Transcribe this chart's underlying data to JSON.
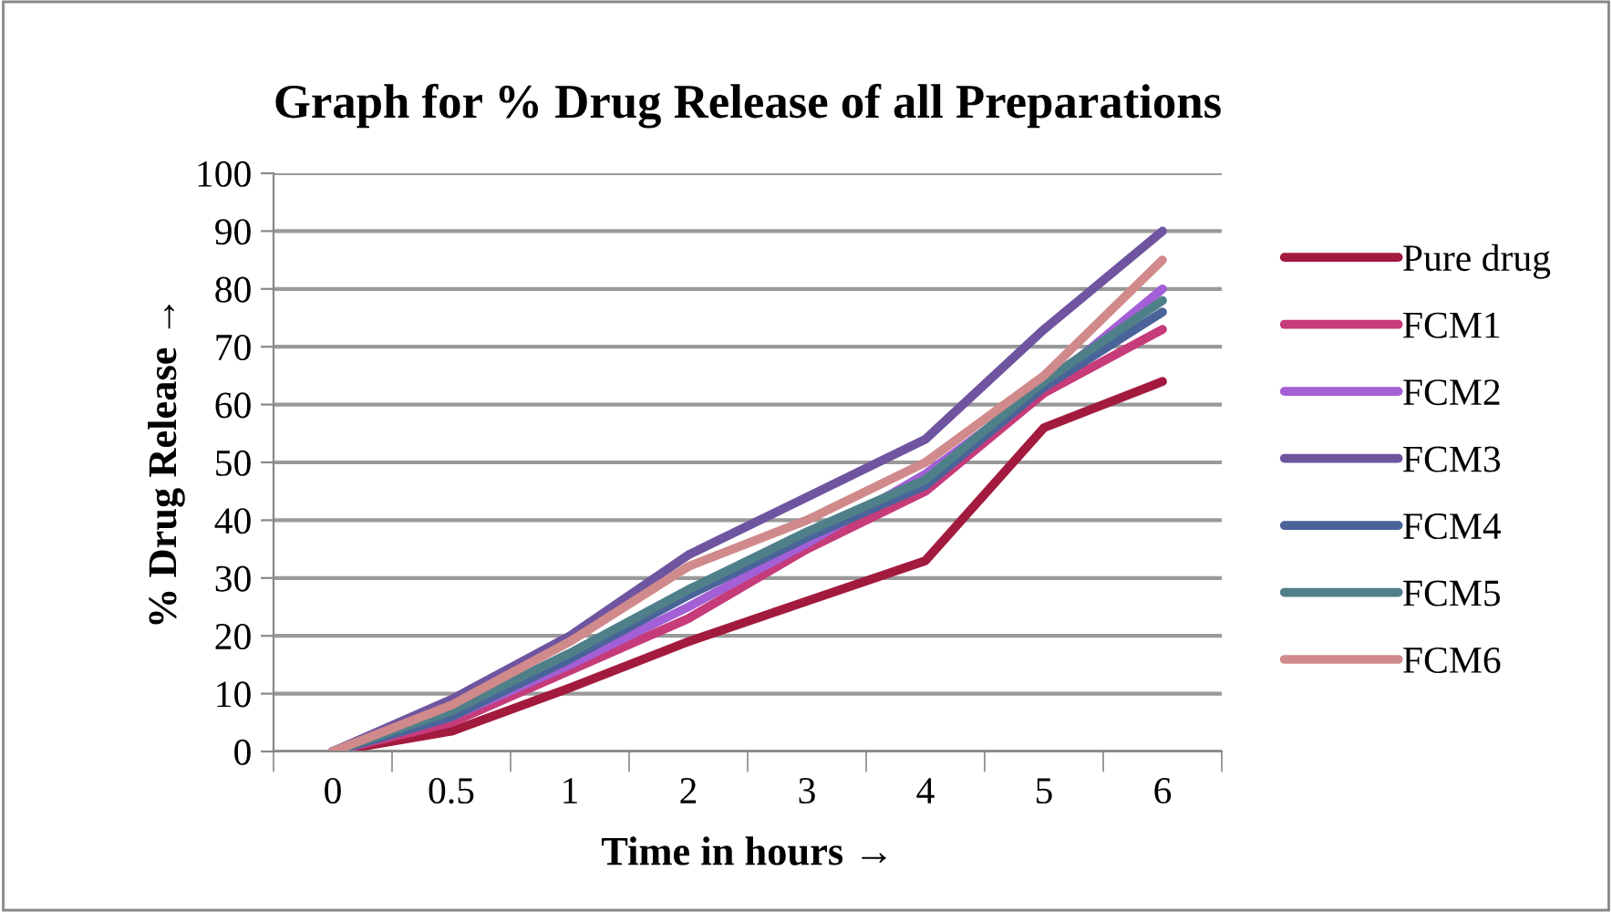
{
  "chart_data": {
    "type": "line",
    "title": "Graph for % Drug Release of all Preparations",
    "xlabel": "Time in hours →",
    "ylabel": "% Drug Release →",
    "categories": [
      "0",
      "0.5",
      "1",
      "2",
      "3",
      "4",
      "5",
      "6"
    ],
    "series": [
      {
        "name": "Pure drug",
        "color": "#a31a3f",
        "values": [
          0,
          3.5,
          11,
          19,
          26,
          33,
          56,
          64
        ]
      },
      {
        "name": "FCM1",
        "color": "#c63b7a",
        "values": [
          0,
          5,
          14,
          23,
          35,
          45,
          62,
          73
        ]
      },
      {
        "name": "FCM2",
        "color": "#a35fd6",
        "values": [
          0,
          6,
          15,
          25,
          36,
          48,
          63,
          80
        ]
      },
      {
        "name": "FCM3",
        "color": "#6f55a0",
        "values": [
          0,
          9,
          20,
          34,
          44,
          54,
          73,
          90
        ]
      },
      {
        "name": "FCM4",
        "color": "#4a6399",
        "values": [
          0,
          6,
          16,
          27,
          37,
          46,
          63,
          76
        ]
      },
      {
        "name": "FCM5",
        "color": "#4f8089",
        "values": [
          0,
          7,
          17,
          28,
          38,
          47,
          64,
          78
        ]
      },
      {
        "name": "FCM6",
        "color": "#d08a8b",
        "values": [
          0,
          8,
          19,
          32,
          40,
          50,
          65,
          85
        ]
      }
    ],
    "ylim": [
      0,
      100
    ],
    "yticks": [
      0,
      10,
      20,
      30,
      40,
      50,
      60,
      70,
      80,
      90,
      100
    ],
    "grid": "y",
    "legend": "right",
    "marker": "none",
    "line_style": "solid"
  }
}
